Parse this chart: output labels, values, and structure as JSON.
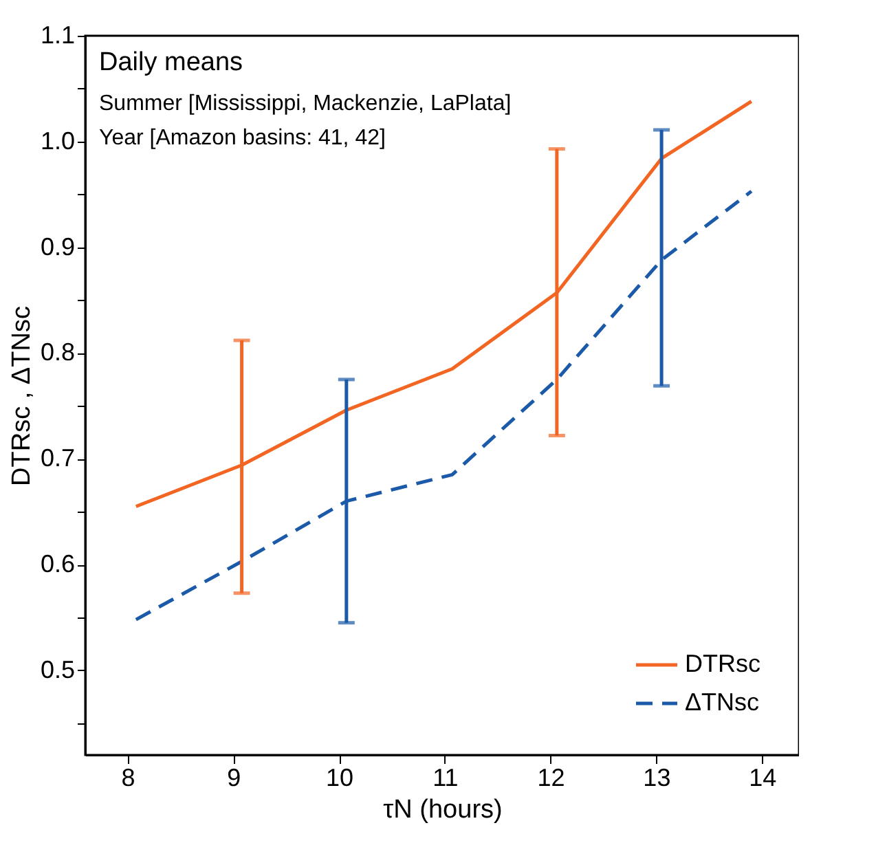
{
  "chart_data": {
    "type": "line",
    "xlabel": "τN  (hours)",
    "ylabel": "DTRsc , ΔTNsc",
    "annotations": [
      "Daily means",
      "Summer [Mississippi, Mackenzie, LaPlata]",
      "Year [Amazon basins: 41, 42]"
    ],
    "series": [
      {
        "name": "DTRsc",
        "color": "#f26522",
        "line_style": "solid",
        "x": [
          8.08,
          9.08,
          10.07,
          11.07,
          12.06,
          13.05,
          13.9
        ],
        "values": [
          0.655,
          0.694,
          0.746,
          0.785,
          0.857,
          0.984,
          1.038
        ],
        "errors": [
          null,
          [
            0.573,
            0.812
          ],
          null,
          null,
          [
            0.722,
            0.993
          ],
          null,
          null
        ]
      },
      {
        "name": "ΔTNsc",
        "color": "#1a5aa8",
        "line_style": "dashed",
        "x": [
          8.08,
          9.08,
          10.07,
          11.07,
          12.06,
          13.05,
          13.9
        ],
        "values": [
          0.548,
          0.603,
          0.66,
          0.685,
          0.775,
          0.888,
          0.953
        ],
        "errors": [
          null,
          null,
          [
            0.545,
            0.775
          ],
          null,
          null,
          [
            0.769,
            1.011
          ],
          null
        ]
      }
    ],
    "xlim": [
      7.6,
      14.35
    ],
    "xticks": [
      8,
      9,
      10,
      11,
      12,
      13,
      14
    ],
    "ylim": [
      0.42,
      1.1
    ],
    "yticks": [
      {
        "value": 0.45,
        "label": null
      },
      0.5,
      {
        "value": 0.55,
        "label": null
      },
      0.6,
      {
        "value": 0.65,
        "label": null
      },
      0.7,
      {
        "value": 0.75,
        "label": null
      },
      0.8,
      {
        "value": 0.85,
        "label": null
      },
      0.9,
      {
        "value": 0.95,
        "label": null
      },
      {
        "value": 1.0,
        "label": "1.0"
      },
      {
        "value": 1.05,
        "label": null
      },
      1.1
    ],
    "grid": false,
    "legend": "bottom right",
    "marker": "none"
  }
}
